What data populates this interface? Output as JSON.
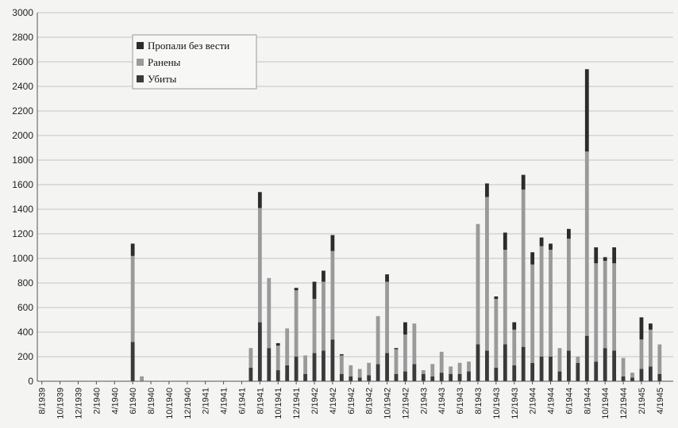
{
  "chart_data": {
    "type": "bar",
    "stacked": true,
    "title": "",
    "xlabel": "",
    "ylabel": "",
    "ylim": [
      0,
      3000
    ],
    "yticks": [
      0,
      200,
      400,
      600,
      800,
      1000,
      1200,
      1400,
      1600,
      1800,
      2000,
      2200,
      2400,
      2600,
      2800,
      3000
    ],
    "grid": true,
    "legend_position": "top-left",
    "xtick_labels": [
      "8/1939",
      "10/1939",
      "12/1939",
      "2/1940",
      "4/1940",
      "6/1940",
      "8/1940",
      "10/1940",
      "12/1940",
      "2/1941",
      "4/1941",
      "6/1941",
      "8/1941",
      "10/1941",
      "12/1941",
      "2/1942",
      "4/1942",
      "6/1942",
      "8/1942",
      "10/1942",
      "12/1942",
      "2/1943",
      "4/1943",
      "6/1943",
      "8/1943",
      "10/1943",
      "12/1943",
      "2/1944",
      "4/1944",
      "6/1944",
      "8/1944",
      "10/1944",
      "12/1944",
      "2/1945",
      "4/1945"
    ],
    "categories": [
      "8/1939",
      "9/1939",
      "10/1939",
      "11/1939",
      "12/1939",
      "1/1940",
      "2/1940",
      "3/1940",
      "4/1940",
      "5/1940",
      "6/1940",
      "7/1940",
      "8/1940",
      "9/1940",
      "10/1940",
      "11/1940",
      "12/1940",
      "1/1941",
      "2/1941",
      "3/1941",
      "4/1941",
      "5/1941",
      "6/1941",
      "7/1941",
      "8/1941",
      "9/1941",
      "10/1941",
      "11/1941",
      "12/1941",
      "1/1942",
      "2/1942",
      "3/1942",
      "4/1942",
      "5/1942",
      "6/1942",
      "7/1942",
      "8/1942",
      "9/1942",
      "10/1942",
      "11/1942",
      "12/1942",
      "1/1943",
      "2/1943",
      "3/1943",
      "4/1943",
      "5/1943",
      "6/1943",
      "7/1943",
      "8/1943",
      "9/1943",
      "10/1943",
      "11/1943",
      "12/1943",
      "1/1944",
      "2/1944",
      "3/1944",
      "4/1944",
      "5/1944",
      "6/1944",
      "7/1944",
      "8/1944",
      "9/1944",
      "10/1944",
      "11/1944",
      "12/1944",
      "1/1945",
      "2/1945",
      "3/1945",
      "4/1945",
      "5/1945"
    ],
    "series": [
      {
        "name": "Убиты",
        "color": "#3a3a3a",
        "values": [
          0,
          0,
          0,
          0,
          0,
          0,
          0,
          0,
          0,
          0,
          320,
          0,
          0,
          0,
          0,
          0,
          0,
          0,
          0,
          0,
          0,
          0,
          0,
          110,
          480,
          270,
          90,
          130,
          200,
          60,
          230,
          250,
          340,
          60,
          40,
          30,
          50,
          140,
          230,
          60,
          80,
          140,
          60,
          40,
          70,
          60,
          60,
          80,
          300,
          250,
          110,
          300,
          130,
          280,
          150,
          200,
          200,
          80,
          250,
          150,
          370,
          160,
          270,
          250,
          40,
          30,
          100,
          120,
          60,
          0
        ]
      },
      {
        "name": "Ранены",
        "color": "#9a9a9a",
        "values": [
          0,
          0,
          0,
          0,
          0,
          0,
          0,
          0,
          0,
          0,
          700,
          40,
          0,
          0,
          0,
          0,
          0,
          0,
          0,
          0,
          0,
          0,
          0,
          160,
          930,
          570,
          200,
          300,
          540,
          150,
          440,
          560,
          720,
          150,
          90,
          70,
          100,
          390,
          580,
          200,
          300,
          330,
          30,
          100,
          170,
          60,
          90,
          80,
          980,
          1250,
          560,
          770,
          290,
          1280,
          800,
          900,
          870,
          190,
          910,
          50,
          1500,
          800,
          710,
          710,
          150,
          40,
          240,
          300,
          240,
          0
        ]
      },
      {
        "name": "Пропали без вести",
        "color": "#2c2c2c",
        "values": [
          0,
          0,
          0,
          0,
          0,
          0,
          0,
          0,
          0,
          0,
          100,
          0,
          0,
          0,
          0,
          0,
          0,
          0,
          0,
          0,
          0,
          0,
          0,
          0,
          130,
          0,
          20,
          0,
          20,
          0,
          140,
          90,
          130,
          10,
          0,
          0,
          0,
          0,
          60,
          10,
          100,
          0,
          0,
          0,
          0,
          0,
          0,
          0,
          0,
          110,
          20,
          140,
          60,
          120,
          100,
          70,
          50,
          0,
          80,
          0,
          670,
          130,
          30,
          130,
          0,
          0,
          180,
          50,
          0,
          0
        ]
      }
    ],
    "legend": [
      {
        "label": "Пропали без вести",
        "color": "#2c2c2c"
      },
      {
        "label": "Ранены",
        "color": "#9a9a9a"
      },
      {
        "label": "Убиты",
        "color": "#3a3a3a"
      }
    ]
  }
}
